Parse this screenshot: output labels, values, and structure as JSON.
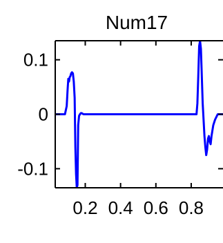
{
  "chart_data": {
    "type": "line",
    "title": "Num17",
    "xlabel": "",
    "ylabel": "",
    "xlim": [
      0.03,
      0.98
    ],
    "ylim": [
      -0.135,
      0.135
    ],
    "x_ticks": [
      0.2,
      0.4,
      0.6,
      0.8
    ],
    "x_tick_labels": [
      "0.2",
      "0.4",
      "0.6",
      "0.8"
    ],
    "y_ticks": [
      0.1,
      0,
      -0.1
    ],
    "y_tick_labels": [
      "0.1",
      "0",
      "-0.1"
    ],
    "grid": false,
    "series": [
      {
        "color": "#0000ff",
        "x": [
          0.03,
          0.085,
          0.095,
          0.1,
          0.104,
          0.108,
          0.112,
          0.116,
          0.12,
          0.125,
          0.13,
          0.135,
          0.14,
          0.144,
          0.148,
          0.152,
          0.156,
          0.16,
          0.165,
          0.17,
          0.175,
          0.18,
          0.19,
          0.2,
          0.3,
          0.4,
          0.5,
          0.6,
          0.7,
          0.8,
          0.83,
          0.835,
          0.84,
          0.845,
          0.85,
          0.855,
          0.86,
          0.865,
          0.87,
          0.875,
          0.88,
          0.885,
          0.89,
          0.895,
          0.9,
          0.905,
          0.91,
          0.915,
          0.92,
          0.925,
          0.935,
          0.95,
          0.98
        ],
        "y": [
          0,
          0,
          0.015,
          0.045,
          0.065,
          0.06,
          0.068,
          0.07,
          0.075,
          0.077,
          0.075,
          0.06,
          0.03,
          -0.06,
          -0.11,
          -0.135,
          -0.13,
          -0.02,
          -0.003,
          0,
          0.002,
          0.002,
          0,
          0,
          0,
          0,
          0,
          0,
          0,
          0,
          0,
          0.02,
          0.07,
          0.125,
          0.135,
          0.12,
          0.07,
          0.02,
          -0.01,
          -0.04,
          -0.06,
          -0.075,
          -0.065,
          -0.045,
          -0.04,
          -0.05,
          -0.055,
          -0.04,
          -0.03,
          -0.02,
          -0.01,
          0,
          0
        ]
      }
    ]
  }
}
